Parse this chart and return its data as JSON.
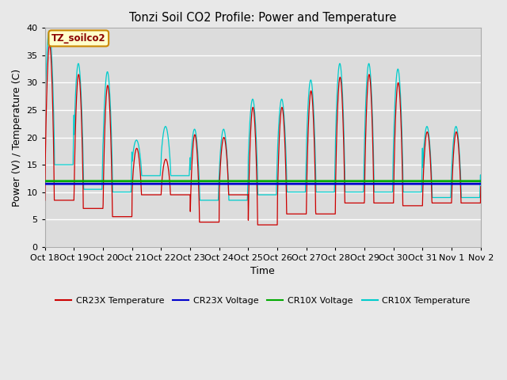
{
  "title": "Tonzi Soil CO2 Profile: Power and Temperature",
  "xlabel": "Time",
  "ylabel": "Power (V) / Temperature (C)",
  "ylim": [
    0,
    40
  ],
  "xlim": [
    0,
    15
  ],
  "fig_bg_color": "#e8e8e8",
  "plot_bg_color": "#dcdcdc",
  "annotation_text": "TZ_soilco2",
  "annotation_bg": "#ffffcc",
  "annotation_border": "#cc8800",
  "x_tick_labels": [
    "Oct 18",
    "Oct 19",
    "Oct 20",
    "Oct 21",
    "Oct 22",
    "Oct 23",
    "Oct 24",
    "Oct 25",
    "Oct 26",
    "Oct 27",
    "Oct 28",
    "Oct 29",
    "Oct 30",
    "Oct 31",
    "Nov 1",
    "Nov 2"
  ],
  "cr23x_voltage_value": 11.5,
  "cr10x_voltage_value": 12.0,
  "cr23x_color": "#cc0000",
  "cr23x_voltage_color": "#0000cc",
  "cr10x_voltage_color": "#00aa00",
  "cr10x_color": "#00cccc",
  "legend_labels": [
    "CR23X Temperature",
    "CR23X Voltage",
    "CR10X Voltage",
    "CR10X Temperature"
  ],
  "cr23x_amps": [
    37.0,
    31.5,
    29.5,
    18.0,
    16.0,
    20.5,
    20.0,
    25.5,
    25.5,
    28.5,
    31.0,
    31.5,
    30.0,
    21.0,
    21.0,
    13.0
  ],
  "cr23x_mins": [
    8.5,
    7.0,
    5.5,
    9.5,
    9.5,
    4.5,
    9.5,
    4.0,
    6.0,
    6.0,
    8.0,
    8.0,
    7.5,
    8.0,
    8.0,
    11.0
  ],
  "cr10x_amps": [
    39.5,
    33.5,
    32.0,
    19.5,
    22.0,
    21.5,
    21.5,
    27.0,
    27.0,
    30.5,
    33.5,
    33.5,
    32.5,
    22.0,
    22.0,
    15.5
  ],
  "cr10x_mins": [
    15.0,
    10.5,
    10.0,
    13.0,
    13.0,
    8.5,
    8.5,
    9.5,
    10.0,
    10.0,
    10.0,
    10.0,
    10.0,
    9.0,
    9.0,
    9.0
  ]
}
